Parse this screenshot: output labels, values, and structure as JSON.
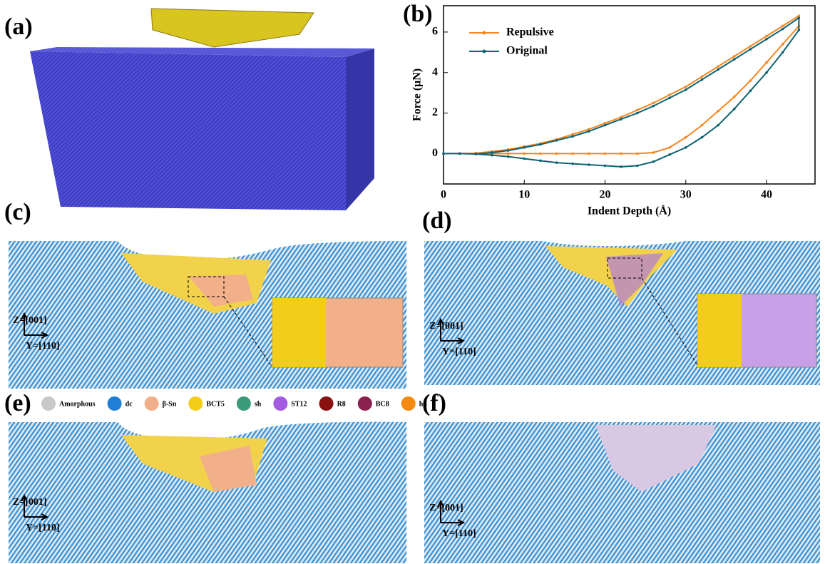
{
  "panels": {
    "a": "(a)",
    "b": "(b)",
    "c": "(c)",
    "d": "(d)",
    "e": "(e)",
    "f": "(f)"
  },
  "coordinate_axes": [
    {
      "z": "Z=[001]",
      "y": "Y=[110]"
    },
    {
      "z": "Z=[001]",
      "y": "Y=[110]"
    },
    {
      "z": "Z=[001]",
      "y": "Y=[110]"
    },
    {
      "z": "Z=[001]",
      "y": "Y=[110]"
    }
  ],
  "structure_legend": [
    {
      "name": "Amorphous",
      "color": "#c8c8c8"
    },
    {
      "name": "dc",
      "color": "#1f7fd6"
    },
    {
      "name": "β-Sn",
      "color": "#f2b08a"
    },
    {
      "name": "BCT5",
      "color": "#f4cc1a"
    },
    {
      "name": "sh",
      "color": "#3a9a7a"
    },
    {
      "name": "ST12",
      "color": "#a35be0"
    },
    {
      "name": "R8",
      "color": "#8a1010"
    },
    {
      "name": "BC8",
      "color": "#8a2050"
    },
    {
      "name": "hd",
      "color": "#f58a10"
    }
  ],
  "chart_data": {
    "type": "line",
    "x_label": "Indent Depth (Å)",
    "y_label": "Force (μN)",
    "x": [
      0,
      2,
      4,
      6,
      8,
      10,
      12,
      14,
      16,
      18,
      20,
      22,
      24,
      26,
      28,
      30,
      32,
      34,
      36,
      38,
      40,
      42,
      44,
      44,
      42,
      40,
      38,
      36,
      34,
      32,
      30,
      28,
      26,
      24,
      22,
      20,
      18,
      16,
      14,
      12,
      10,
      8,
      6,
      4,
      2,
      0
    ],
    "series": [
      {
        "name": "Repulsive",
        "color": "#f5861f",
        "values": [
          0,
          0,
          0.02,
          0.1,
          0.2,
          0.35,
          0.5,
          0.7,
          0.95,
          1.2,
          1.5,
          1.8,
          2.15,
          2.5,
          2.9,
          3.3,
          3.8,
          4.3,
          4.8,
          5.3,
          5.8,
          6.3,
          6.8,
          6.3,
          5.4,
          4.5,
          3.6,
          2.8,
          2.1,
          1.4,
          0.8,
          0.3,
          0.05,
          0,
          0,
          0,
          0,
          0,
          0,
          0,
          0,
          0,
          0,
          0,
          0,
          0
        ]
      },
      {
        "name": "Original",
        "color": "#0e6373",
        "values": [
          0,
          0,
          -0.02,
          0.05,
          0.15,
          0.3,
          0.45,
          0.65,
          0.85,
          1.1,
          1.4,
          1.7,
          2.0,
          2.35,
          2.75,
          3.15,
          3.65,
          4.15,
          4.65,
          5.15,
          5.65,
          6.15,
          6.7,
          6.1,
          5.0,
          4.0,
          3.1,
          2.2,
          1.4,
          0.8,
          0.3,
          -0.05,
          -0.4,
          -0.6,
          -0.65,
          -0.6,
          -0.55,
          -0.5,
          -0.45,
          -0.35,
          -0.25,
          -0.15,
          -0.08,
          -0.02,
          0,
          0
        ]
      }
    ],
    "xlim": [
      0,
      46
    ],
    "xticks": [
      0,
      10,
      20,
      30,
      40
    ],
    "ylim": [
      -1.5,
      7.3
    ],
    "yticks": [
      0,
      2,
      4,
      6
    ]
  }
}
